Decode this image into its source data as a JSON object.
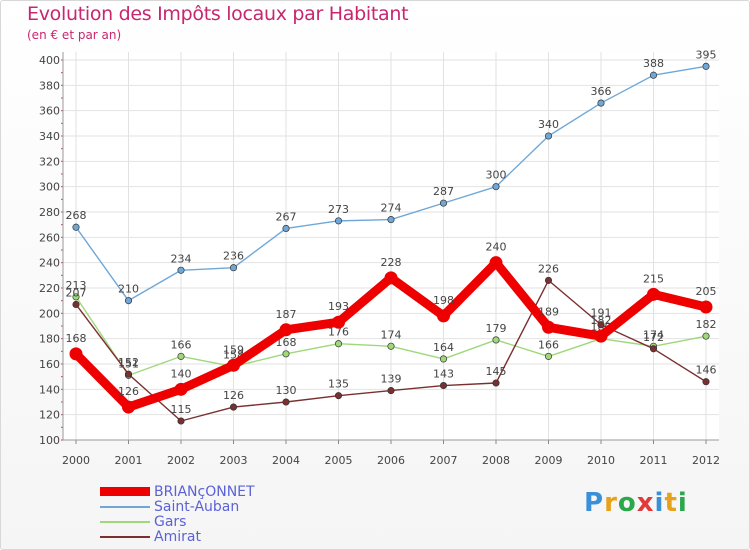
{
  "title": "Evolution des Impôts locaux par Habitant",
  "subtitle": "(en € et par an)",
  "logo": {
    "text": "Proxiti",
    "colors": [
      "#3a8fd8",
      "#e8a21a",
      "#2aa84a",
      "#e23a3a",
      "#3a8fd8",
      "#e8a21a",
      "#2aa84a"
    ]
  },
  "chart_data": {
    "type": "line",
    "categories": [
      "2000",
      "2001",
      "2002",
      "2003",
      "2004",
      "2005",
      "2006",
      "2007",
      "2008",
      "2009",
      "2010",
      "2011",
      "2012"
    ],
    "ylim": [
      100,
      400
    ],
    "yticks": [
      "100",
      "120",
      "140",
      "160",
      "180",
      "200",
      "220",
      "240",
      "260",
      "280",
      "300",
      "320",
      "340",
      "360",
      "380",
      "400"
    ],
    "grid": true,
    "legend_position": "bottom-left",
    "series": [
      {
        "name": "BRIANçONNET",
        "color": "#ee0000",
        "values": [
          168,
          126,
          140,
          159,
          187,
          193,
          228,
          198,
          240,
          189,
          182,
          215,
          205
        ],
        "labels": [
          "168",
          "126",
          "140",
          "159",
          "187",
          "193",
          "228",
          "198",
          "240",
          "189",
          "182",
          "215",
          "205"
        ]
      },
      {
        "name": "Saint-Auban",
        "color": "#6fa8d8",
        "values": [
          268,
          210,
          234,
          236,
          267,
          273,
          274,
          287,
          300,
          340,
          366,
          388,
          395
        ],
        "labels": [
          "268",
          "210",
          "234",
          "236",
          "267",
          "273",
          "274",
          "287",
          "300",
          "340",
          "366",
          "388",
          "395"
        ]
      },
      {
        "name": "Gars",
        "color": "#9ed87a",
        "values": [
          213,
          151,
          166,
          158,
          168,
          176,
          174,
          164,
          179,
          166,
          180,
          174,
          182
        ],
        "labels": [
          "213",
          "151",
          "166",
          "158",
          "168",
          "176",
          "174",
          "164",
          "179",
          "166",
          "180",
          "174",
          "182"
        ]
      },
      {
        "name": "Amirat",
        "color": "#7a3030",
        "values": [
          207,
          152,
          115,
          126,
          130,
          135,
          139,
          143,
          145,
          226,
          191,
          172,
          146
        ],
        "labels": [
          "207",
          "152",
          "115",
          "126",
          "130",
          "135",
          "139",
          "143",
          "145",
          "226",
          "191",
          "172",
          "146"
        ]
      }
    ]
  }
}
